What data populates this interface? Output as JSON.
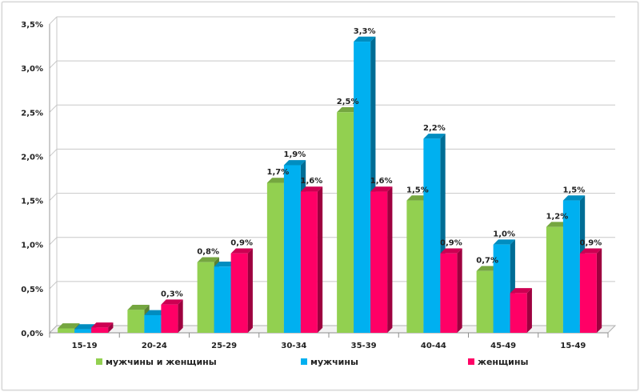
{
  "chart_data": {
    "type": "bar",
    "categories": [
      "15-19",
      "20-24",
      "25-29",
      "30-34",
      "35-39",
      "40-44",
      "45-49",
      "15-49"
    ],
    "series": [
      {
        "name": "мужчины и женщины",
        "color": "#92d050",
        "values": [
          0.05,
          0.26,
          0.8,
          1.7,
          2.5,
          1.5,
          0.7,
          1.2
        ],
        "labels": [
          "",
          "",
          "0,8%",
          "1,7%",
          "2,5%",
          "1,5%",
          "0,7%",
          "1,2%"
        ]
      },
      {
        "name": "мужчины",
        "color": "#00b0f0",
        "values": [
          0.04,
          0.2,
          0.75,
          1.9,
          3.3,
          2.2,
          1.0,
          1.5
        ],
        "labels": [
          "",
          "",
          "",
          "1,9%",
          "3,3%",
          "2,2%",
          "1,0%",
          "1,5%"
        ]
      },
      {
        "name": "женщины",
        "color": "#ff0066",
        "values": [
          0.06,
          0.32,
          0.9,
          1.6,
          1.6,
          0.9,
          0.45,
          0.9
        ],
        "labels": [
          "",
          "0,3%",
          "0,9%",
          "1,6%",
          "1,6%",
          "0,9%",
          "",
          "0,9%"
        ]
      }
    ],
    "y_ticks": [
      "0,0%",
      "0,5%",
      "1,0%",
      "1,5%",
      "2,0%",
      "2,5%",
      "3,0%",
      "3,5%"
    ],
    "ylim": [
      0,
      3.5
    ],
    "grid": true,
    "legend_position": "bottom",
    "title": "",
    "xlabel": "",
    "ylabel": ""
  }
}
